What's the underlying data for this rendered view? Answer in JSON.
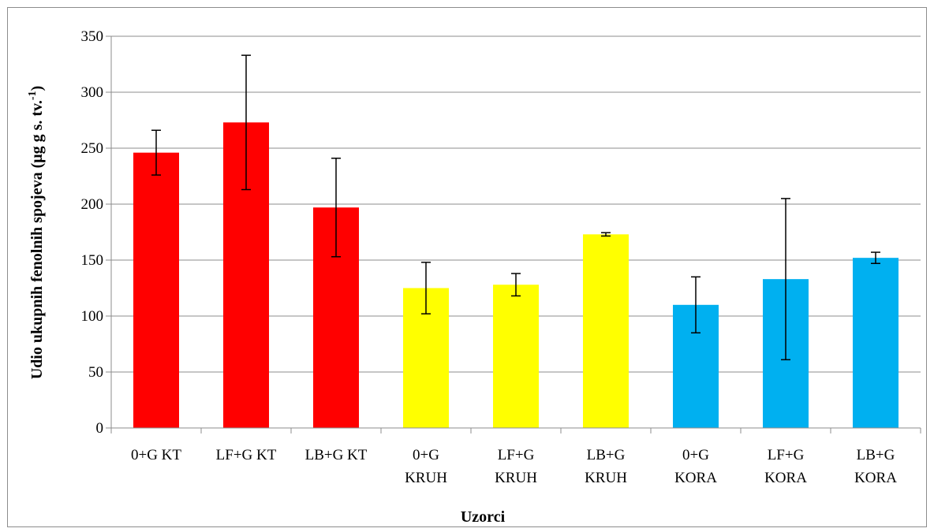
{
  "chart_data": {
    "type": "bar",
    "title": "",
    "xlabel": "Uzorci",
    "ylabel": "Udio ukupnih fenolnih spojeva (μg g s. tv.",
    "ylabel_sup": "-1",
    "ylabel_end": ")",
    "ylim": [
      0,
      350
    ],
    "yticks": [
      0,
      50,
      100,
      150,
      200,
      250,
      300,
      350
    ],
    "grid": true,
    "legend": "none",
    "categories": [
      [
        "0+G KT"
      ],
      [
        "LF+G KT"
      ],
      [
        "LB+G KT"
      ],
      [
        "0+G",
        "KRUH"
      ],
      [
        "LF+G",
        "KRUH"
      ],
      [
        "LB+G",
        "KRUH"
      ],
      [
        "0+G",
        "KORA"
      ],
      [
        "LF+G",
        "KORA"
      ],
      [
        "LB+G",
        "KORA"
      ]
    ],
    "values": [
      246,
      273,
      197,
      125,
      128,
      173,
      110,
      133,
      152
    ],
    "error": [
      20,
      60,
      44,
      23,
      10,
      1.5,
      25,
      72,
      5
    ],
    "colors": [
      "#ff0000",
      "#ff0000",
      "#ff0000",
      "#ffff00",
      "#ffff00",
      "#ffff00",
      "#00b0f0",
      "#00b0f0",
      "#00b0f0"
    ]
  }
}
